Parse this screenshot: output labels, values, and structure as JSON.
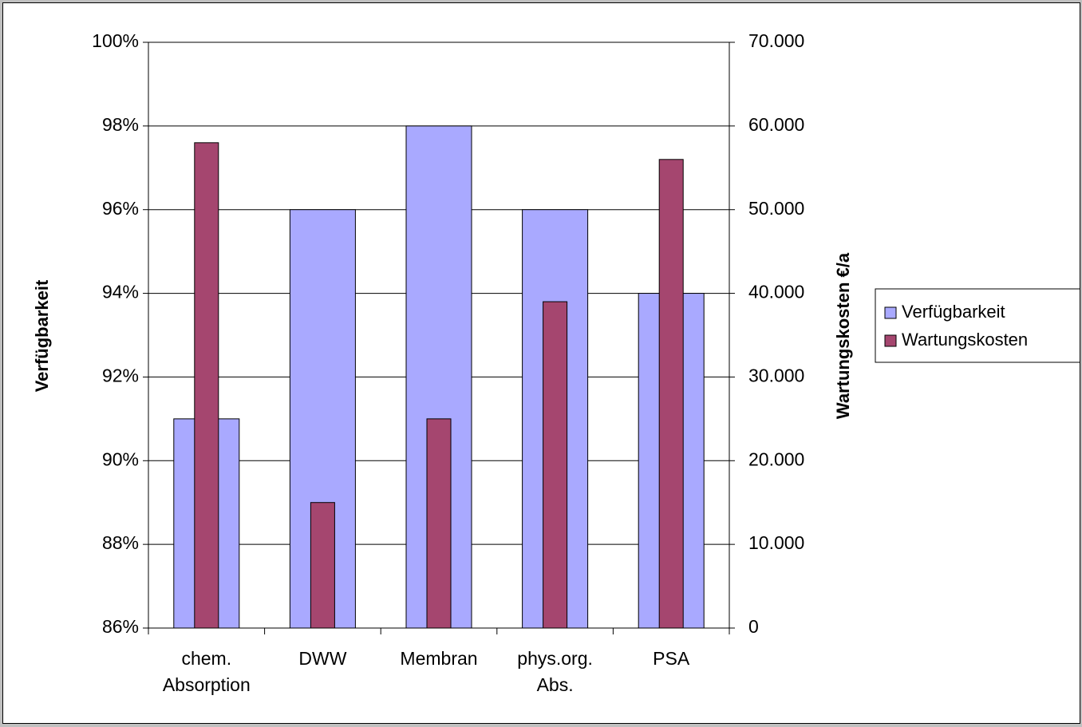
{
  "chart_data": {
    "type": "bar",
    "title": "",
    "categories": [
      [
        "chem.",
        "Absorption"
      ],
      [
        "DWW"
      ],
      [
        "Membran"
      ],
      [
        "phys.org.",
        "Abs."
      ],
      [
        "PSA"
      ]
    ],
    "series": [
      {
        "name": "Verfügbarkeit",
        "axis": "left",
        "color": "#a9a9ff",
        "values": [
          0.91,
          0.96,
          0.98,
          0.96,
          0.94
        ]
      },
      {
        "name": "Wartungskosten",
        "axis": "right",
        "color": "#a5466f",
        "values": [
          58000,
          15000,
          25000,
          39000,
          56000
        ]
      }
    ],
    "y_left": {
      "label": "Verfügbarkeit",
      "ylim": [
        0.86,
        1.0
      ],
      "ticks": [
        0.86,
        0.88,
        0.9,
        0.92,
        0.94,
        0.96,
        0.98,
        1.0
      ],
      "tick_labels": [
        "86%",
        "88%",
        "90%",
        "92%",
        "94%",
        "96%",
        "98%",
        "100%"
      ]
    },
    "y_right": {
      "label": "Wartungskosten €/a",
      "ylim": [
        0,
        70000
      ],
      "ticks": [
        0,
        10000,
        20000,
        30000,
        40000,
        50000,
        60000,
        70000
      ],
      "tick_labels": [
        "0",
        "10.000",
        "20.000",
        "30.000",
        "40.000",
        "50.000",
        "60.000",
        "70.000"
      ]
    },
    "grid": true,
    "legend": {
      "position": "right",
      "entries": [
        "Verfügbarkeit",
        "Wartungskosten"
      ]
    }
  }
}
